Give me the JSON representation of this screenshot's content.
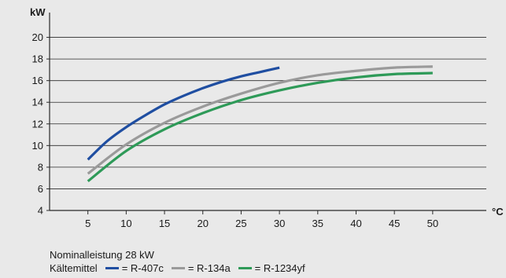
{
  "chart_data": {
    "type": "line",
    "xlabel": "°C",
    "ylabel": "kW",
    "x_ticks": [
      5,
      10,
      15,
      20,
      25,
      30,
      35,
      40,
      45,
      50
    ],
    "y_ticks": [
      4,
      6,
      8,
      10,
      12,
      14,
      16,
      18,
      20
    ],
    "xlim": [
      0,
      57
    ],
    "ylim": [
      4,
      22
    ],
    "grid": "horizontal",
    "series": [
      {
        "name": "R-407c",
        "color": "#1f4ea1",
        "x": [
          5,
          7.5,
          10,
          12.5,
          15,
          17.5,
          20,
          22.5,
          25,
          27.5,
          30
        ],
        "y": [
          8.7,
          10.4,
          11.7,
          12.8,
          13.8,
          14.6,
          15.3,
          15.9,
          16.4,
          16.8,
          17.2
        ]
      },
      {
        "name": "R-134a",
        "color": "#9a9a9a",
        "x": [
          5,
          10,
          15,
          20,
          25,
          30,
          35,
          40,
          45,
          50
        ],
        "y": [
          7.4,
          10.1,
          12.1,
          13.6,
          14.8,
          15.8,
          16.5,
          16.9,
          17.2,
          17.3
        ]
      },
      {
        "name": "R-1234yf",
        "color": "#2e9a58",
        "x": [
          5,
          10,
          15,
          20,
          25,
          30,
          35,
          40,
          45,
          50
        ],
        "y": [
          6.7,
          9.5,
          11.5,
          13.0,
          14.2,
          15.1,
          15.8,
          16.3,
          16.6,
          16.7
        ]
      }
    ]
  },
  "footer": {
    "nominal": "Nominalleistung 28 kW",
    "refrigerant_label": "Kältemittel",
    "legend": [
      {
        "text": "= R-407c",
        "color": "#1f4ea1"
      },
      {
        "text": "= R-134a",
        "color": "#9a9a9a"
      },
      {
        "text": "= R-1234yf",
        "color": "#2e9a58"
      }
    ]
  }
}
